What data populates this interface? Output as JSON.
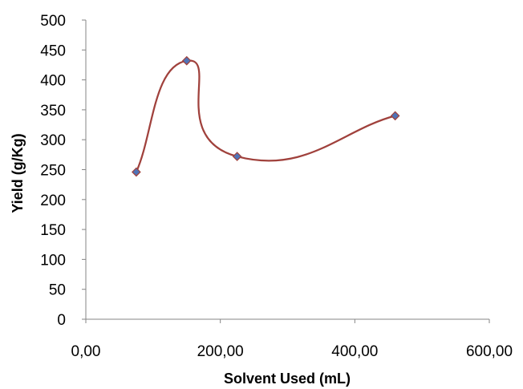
{
  "chart_data": {
    "type": "scatter",
    "title": "",
    "xlabel": "Solvent Used (mL)",
    "ylabel": "Yield (g/Kg)",
    "xlim": [
      0,
      600
    ],
    "ylim": [
      0,
      500
    ],
    "x_ticks": [
      0,
      200,
      400,
      600
    ],
    "x_tick_labels": [
      "0,00",
      "200,00",
      "400,00",
      "600,00"
    ],
    "y_ticks": [
      0,
      50,
      100,
      150,
      200,
      250,
      300,
      350,
      400,
      450,
      500
    ],
    "y_tick_labels": [
      "0",
      "50",
      "100",
      "150",
      "200",
      "250",
      "300",
      "350",
      "400",
      "450",
      "500"
    ],
    "grid": false,
    "legend": false,
    "smooth_line": true,
    "series": [
      {
        "x": [
          75,
          150,
          225,
          460
        ],
        "y": [
          246,
          432,
          272,
          340
        ],
        "line_color": "#a0413c",
        "marker": "diamond",
        "marker_color": "#4f74b8"
      }
    ]
  }
}
